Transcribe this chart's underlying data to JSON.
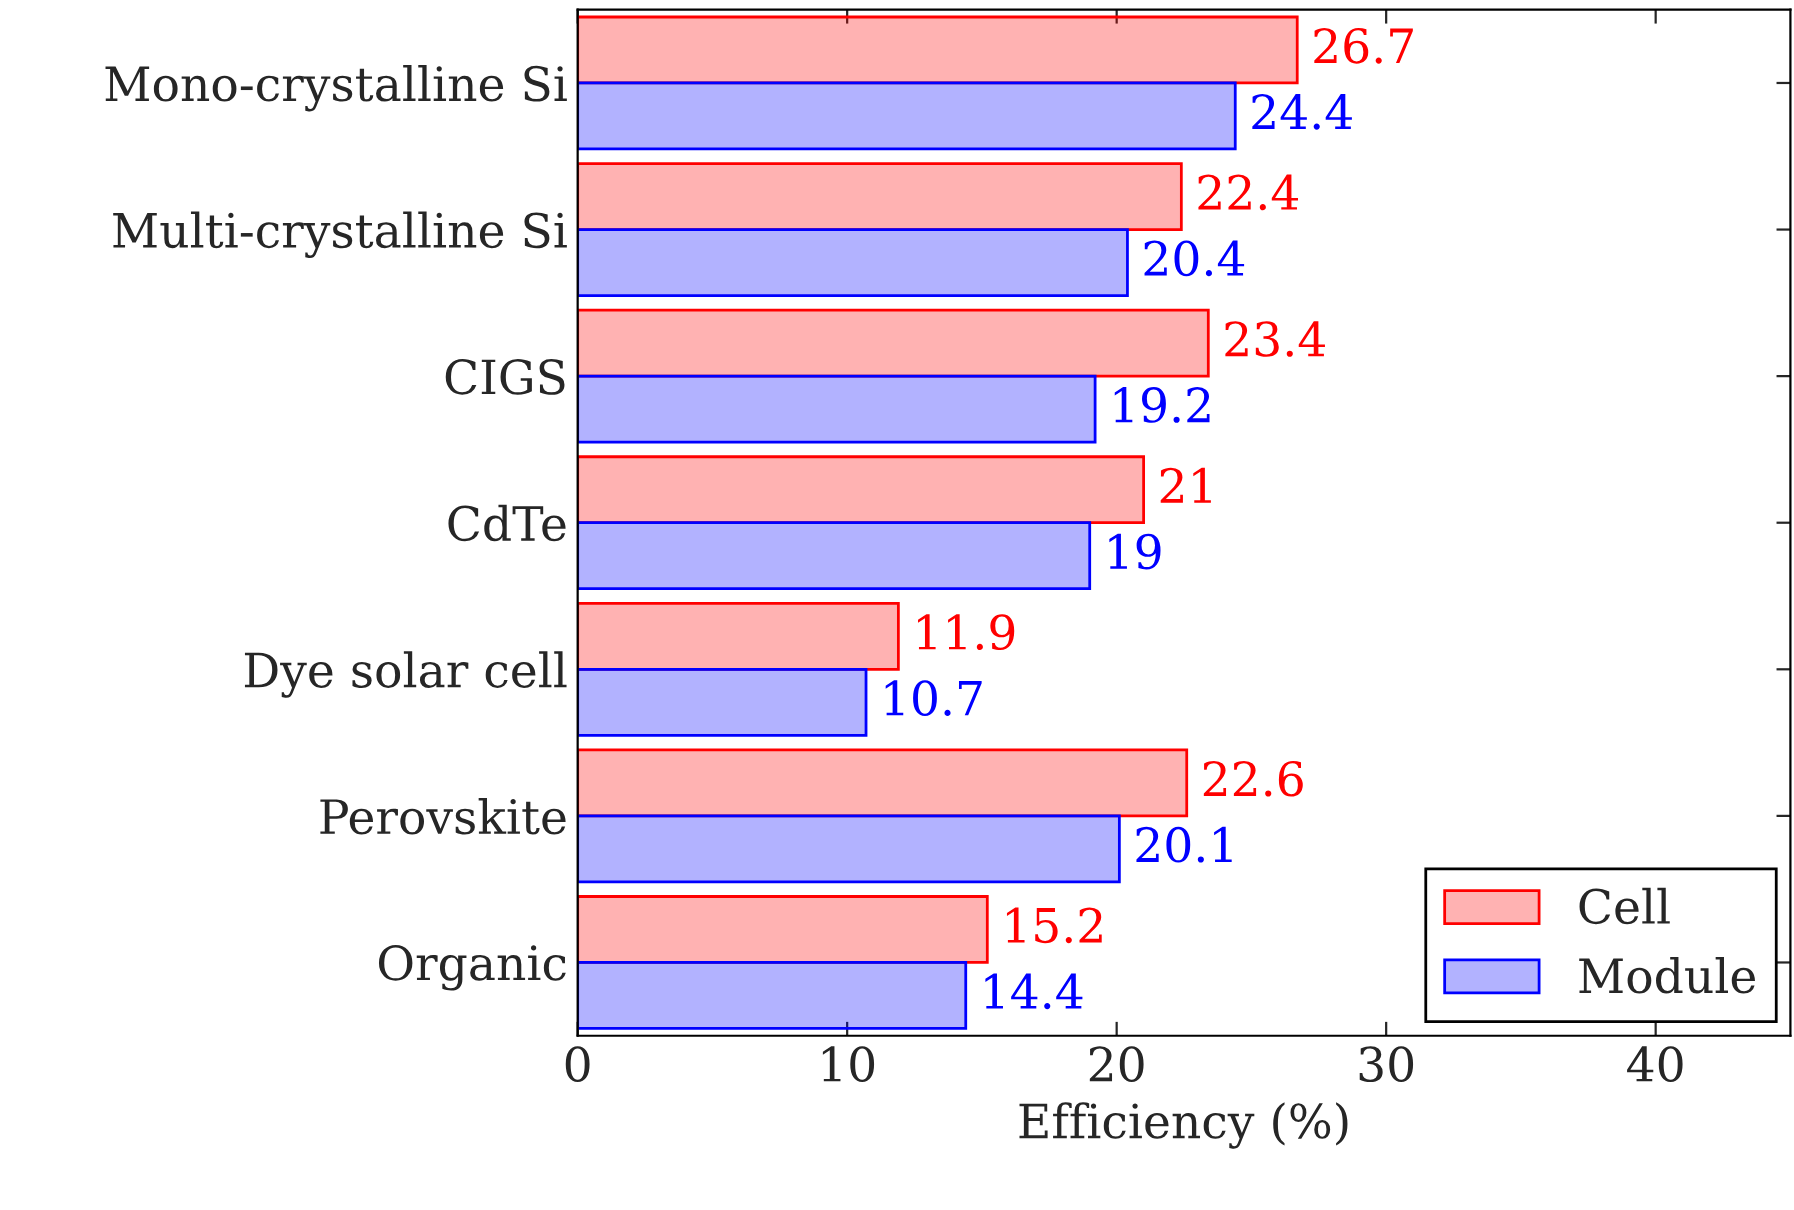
{
  "chart_data": {
    "type": "bar",
    "orientation": "horizontal",
    "xlabel": "Efficiency (%)",
    "categories": [
      "Mono-crystalline Si",
      "Multi-crystalline Si",
      "CIGS",
      "CdTe",
      "Dye solar cell",
      "Perovskite",
      "Organic"
    ],
    "series": [
      {
        "name": "Cell",
        "color": "#ff0000",
        "values": [
          26.7,
          22.4,
          23.4,
          21,
          11.9,
          22.6,
          15.2
        ]
      },
      {
        "name": "Module",
        "color": "#0000ff",
        "values": [
          24.4,
          20.4,
          19.2,
          19,
          10.7,
          20.1,
          14.4
        ]
      }
    ],
    "xlim": [
      0,
      45
    ],
    "xticks": [
      0,
      10,
      20,
      30,
      40
    ],
    "data_labels": true,
    "legend": "bottom right",
    "grid": false
  }
}
